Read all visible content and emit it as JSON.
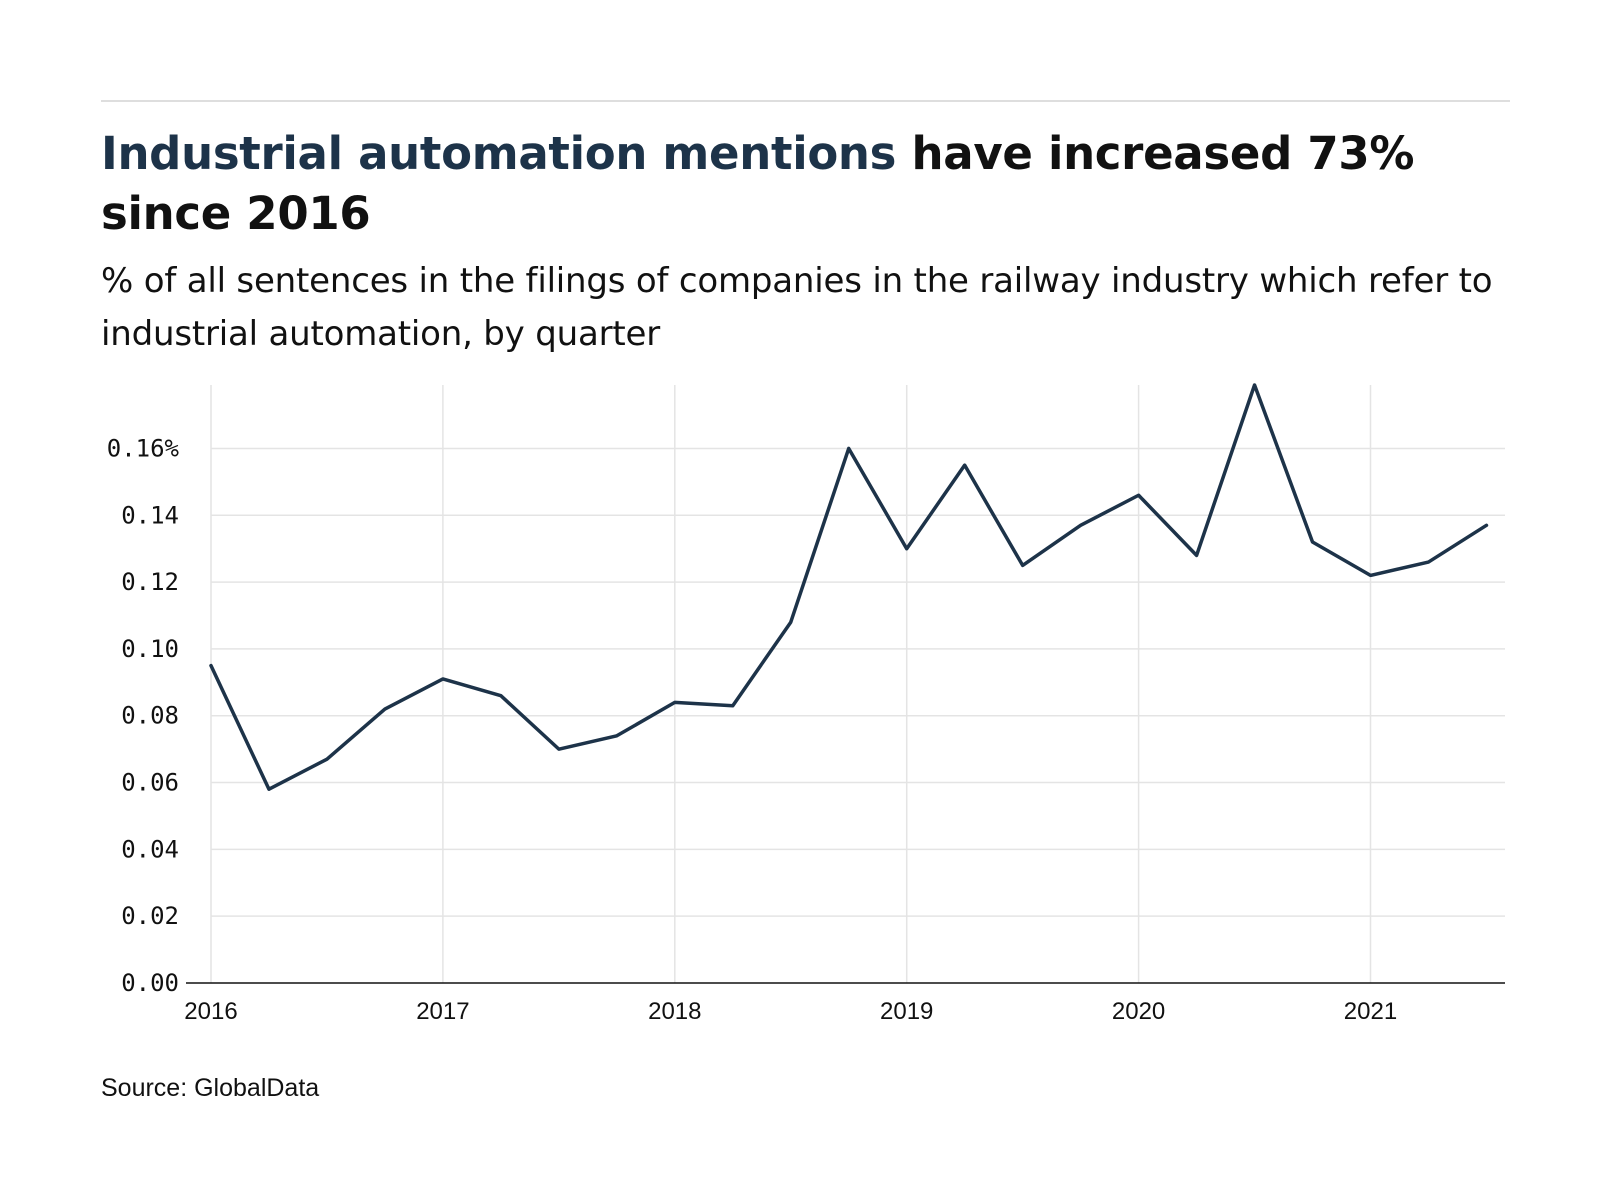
{
  "header": {
    "title_highlight": "Industrial automation mentions",
    "title_rest": " have increased 73% since 2016",
    "subtitle": "% of all sentences in the filings of companies in the railway industry which refer to industrial automation, by quarter"
  },
  "footer": {
    "source": "Source: GlobalData"
  },
  "colors": {
    "line": "#1d3349",
    "grid": "#e4e4e4",
    "axis": "#111111",
    "title_accent": "#1d3349"
  },
  "chart_data": {
    "type": "line",
    "title": "Industrial automation mentions have increased 73% since 2016",
    "subtitle": "% of all sentences in the filings of companies in the railway industry which refer to industrial automation, by quarter",
    "xlabel": "",
    "ylabel": "",
    "x": [
      2016.0,
      2016.25,
      2016.5,
      2016.75,
      2017.0,
      2017.25,
      2017.5,
      2017.75,
      2018.0,
      2018.25,
      2018.5,
      2018.75,
      2019.0,
      2019.25,
      2019.5,
      2019.75,
      2020.0,
      2020.25,
      2020.5,
      2020.75,
      2021.0,
      2021.25,
      2021.5
    ],
    "series": [
      {
        "values": [
          0.095,
          0.058,
          0.067,
          0.082,
          0.091,
          0.086,
          0.07,
          0.074,
          0.084,
          0.083,
          0.108,
          0.16,
          0.13,
          0.155,
          0.125,
          0.137,
          0.146,
          0.128,
          0.179,
          0.132,
          0.122,
          0.126,
          0.137
        ]
      }
    ],
    "x_ticks": [
      2016,
      2017,
      2018,
      2019,
      2020,
      2021
    ],
    "x_tick_labels": [
      "2016",
      "2017",
      "2018",
      "2019",
      "2020",
      "2021"
    ],
    "y_ticks": [
      0,
      0.02,
      0.04,
      0.06,
      0.08,
      0.1,
      0.12,
      0.14,
      0.16
    ],
    "y_tick_labels": [
      "0.00",
      "0.02",
      "0.04",
      "0.06",
      "0.08",
      "0.10",
      "0.12",
      "0.14",
      "0.16%"
    ],
    "xlim": [
      2016,
      2021.58
    ],
    "ylim": [
      0,
      0.179
    ],
    "grid": true,
    "legend": "none"
  }
}
